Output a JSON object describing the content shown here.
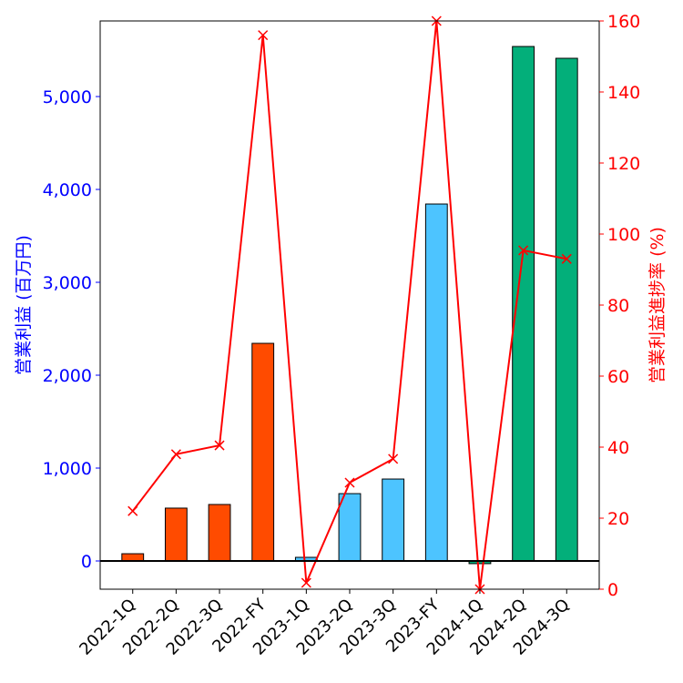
{
  "chart_data": {
    "type": "bar",
    "categories": [
      "2022-1Q",
      "2022-2Q",
      "2022-3Q",
      "2022-FY",
      "2023-1Q",
      "2023-2Q",
      "2023-3Q",
      "2023-FY",
      "2024-1Q",
      "2024-2Q",
      "2024-3Q"
    ],
    "series": [
      {
        "name": "営業利益 (百万円)",
        "type": "bar",
        "axis": "left",
        "values": [
          78,
          569,
          608,
          2343,
          39,
          725,
          882,
          3843,
          -29,
          5539,
          5412
        ],
        "colors": [
          "#FF4B00",
          "#FF4B00",
          "#FF4B00",
          "#FF4B00",
          "#4DC4FF",
          "#4DC4FF",
          "#4DC4FF",
          "#4DC4FF",
          "#03AF7A",
          "#03AF7A",
          "#03AF7A"
        ]
      },
      {
        "name": "営業利益進捗率 (%)",
        "type": "line",
        "axis": "right",
        "color": "#FF0000",
        "marker": "x",
        "values": [
          22,
          38,
          40.5,
          156,
          1.8,
          30,
          36.7,
          160,
          0,
          95.4,
          93
        ]
      }
    ],
    "ylabel": "営業利益 (百万円)",
    "y2label": "営業利益進捗率 (%)",
    "ylim": [
      -304,
      5814
    ],
    "y2lim": [
      0,
      160
    ],
    "yticks": [
      0,
      1000,
      2000,
      3000,
      4000,
      5000
    ],
    "ytick_labels": [
      "0",
      "1,000",
      "2,000",
      "3,000",
      "4,000",
      "5,000"
    ],
    "y2ticks": [
      0,
      20,
      40,
      60,
      80,
      100,
      120,
      140,
      160
    ],
    "y2tick_labels": [
      "0",
      "20",
      "40",
      "60",
      "80",
      "100",
      "120",
      "140",
      "160"
    ],
    "left_axis_color": "#0000FF",
    "right_axis_color": "#FF0000",
    "grid": false
  }
}
